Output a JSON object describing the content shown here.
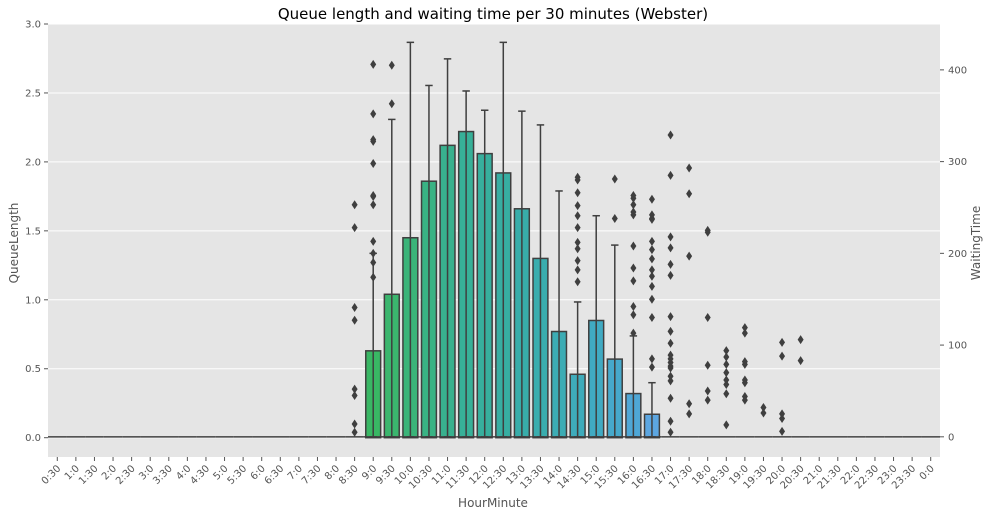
{
  "chart_data": {
    "type": "bar",
    "title": "Queue length and waiting time per 30 minutes (Webster)",
    "xlabel": "HourMinute",
    "ylabel": "QueueLength",
    "y2label": "WaitingTime",
    "ylim": [
      -0.14,
      3.0
    ],
    "y2lim": [
      -22,
      450
    ],
    "yticks": [
      "0.0",
      "0.5",
      "1.0",
      "1.5",
      "2.0",
      "2.5",
      "3.0"
    ],
    "y2ticks": [
      "0",
      "100",
      "200",
      "300",
      "400"
    ],
    "grid": true,
    "background": "#e5e5e5",
    "categories": [
      "0:30",
      "1:0",
      "1:30",
      "2:0",
      "2:30",
      "3:0",
      "3:30",
      "4:0",
      "4:30",
      "5:0",
      "5:30",
      "6:0",
      "6:30",
      "7:0",
      "7:30",
      "8:0",
      "8:30",
      "9:0",
      "9:30",
      "10:0",
      "10:30",
      "11:0",
      "11:30",
      "12:0",
      "12:30",
      "13:0",
      "13:30",
      "14:0",
      "14:30",
      "15:0",
      "15:30",
      "16:0",
      "16:30",
      "17:0",
      "17:30",
      "18:0",
      "18:30",
      "19:0",
      "19:30",
      "20:0",
      "20:30",
      "21:0",
      "21:30",
      "22:0",
      "22:30",
      "23:0",
      "23:30",
      "0:0"
    ],
    "series": [
      {
        "kind": "bar",
        "values": [
          0,
          0,
          0,
          0,
          0,
          0,
          0,
          0,
          0,
          0,
          0,
          0,
          0,
          0,
          0,
          0,
          0,
          0.63,
          1.04,
          1.45,
          1.86,
          2.12,
          2.22,
          2.06,
          1.92,
          1.66,
          1.3,
          0.77,
          0.46,
          0.85,
          0.57,
          0.32,
          0.17,
          0,
          0,
          0,
          0,
          0,
          0,
          0,
          0,
          0,
          0,
          0,
          0,
          0,
          0,
          0
        ],
        "colors": [
          "#e8736b",
          "#e77a5c",
          "#e3814c",
          "#db893f",
          "#d19035",
          "#c6962e",
          "#b99c2c",
          "#ac9f2c",
          "#9fa32f",
          "#91a637",
          "#84a93c",
          "#75ac41",
          "#66ae46",
          "#55b04a",
          "#46b34c",
          "#39b551",
          "#36b65a",
          "#39b764",
          "#3bb66e",
          "#3bb479",
          "#39b384",
          "#38b18e",
          "#37b098",
          "#37af9d",
          "#37aea2",
          "#38adaa",
          "#3aadae",
          "#3cacb4",
          "#3eabbb",
          "#40aac2",
          "#46a9cb",
          "#4fa7d6",
          "#5ca6e1",
          "#71a2e6",
          "#8a9de8",
          "#a098ea",
          "#b292ea",
          "#c18ceb",
          "#ce87ea",
          "#d883e4",
          "#e07fde",
          "#e67bd6",
          "#eb77cd",
          "#ef74c3",
          "#f072b8",
          "#ef72ac",
          "#ed72a0",
          "#ea7394"
        ]
      },
      {
        "kind": "boxplot",
        "axis": "y2",
        "boxes": [
          {
            "q1": 0,
            "med": 0,
            "q3": 0,
            "lo": 0,
            "hi": 0,
            "out": []
          },
          {
            "q1": 0,
            "med": 0,
            "q3": 0,
            "lo": 0,
            "hi": 0,
            "out": []
          },
          {
            "q1": 0,
            "med": 0,
            "q3": 0,
            "lo": 0,
            "hi": 0,
            "out": []
          },
          {
            "q1": 0,
            "med": 0,
            "q3": 0,
            "lo": 0,
            "hi": 0,
            "out": []
          },
          {
            "q1": 0,
            "med": 0,
            "q3": 0,
            "lo": 0,
            "hi": 0,
            "out": []
          },
          {
            "q1": 0,
            "med": 0,
            "q3": 0,
            "lo": 0,
            "hi": 0,
            "out": []
          },
          {
            "q1": 0,
            "med": 0,
            "q3": 0,
            "lo": 0,
            "hi": 0,
            "out": []
          },
          {
            "q1": 0,
            "med": 0,
            "q3": 0,
            "lo": 0,
            "hi": 0,
            "out": []
          },
          {
            "q1": 0,
            "med": 0,
            "q3": 0,
            "lo": 0,
            "hi": 0,
            "out": []
          },
          {
            "q1": 0,
            "med": 0,
            "q3": 0,
            "lo": 0,
            "hi": 0,
            "out": []
          },
          {
            "q1": 0,
            "med": 0,
            "q3": 0,
            "lo": 0,
            "hi": 0,
            "out": []
          },
          {
            "q1": 0,
            "med": 0,
            "q3": 0,
            "lo": 0,
            "hi": 0,
            "out": []
          },
          {
            "q1": 0,
            "med": 0,
            "q3": 0,
            "lo": 0,
            "hi": 0,
            "out": []
          },
          {
            "q1": 0,
            "med": 0,
            "q3": 0,
            "lo": 0,
            "hi": 0,
            "out": []
          },
          {
            "q1": 0,
            "med": 0,
            "q3": 0,
            "lo": 0,
            "hi": 0,
            "out": []
          },
          {
            "q1": 0,
            "med": 0,
            "q3": 0,
            "lo": 0,
            "hi": 0,
            "out": []
          },
          {
            "q1": 0,
            "med": 0,
            "q3": 0,
            "lo": 0,
            "hi": 0,
            "out": [
              5,
              14,
              45,
              52,
              127,
              141,
              228,
              253
            ]
          },
          {
            "q1": 0,
            "med": 0,
            "q3": 0,
            "lo": 0,
            "hi": 200,
            "out": [
              174,
              190,
              200,
              213,
              253,
              262,
              263,
              298,
              322,
              324,
              352,
              406
            ]
          },
          {
            "q1": 0,
            "med": 0,
            "q3": 0,
            "lo": 0,
            "hi": 346,
            "out": [
              363,
              405
            ]
          },
          {
            "q1": 0,
            "med": 0,
            "q3": 0,
            "lo": 0,
            "hi": 430,
            "out": []
          },
          {
            "q1": 0,
            "med": 0,
            "q3": 0,
            "lo": 0,
            "hi": 383,
            "out": []
          },
          {
            "q1": 0,
            "med": 0,
            "q3": 0,
            "lo": 0,
            "hi": 412,
            "out": []
          },
          {
            "q1": 0,
            "med": 0,
            "q3": 0,
            "lo": 0,
            "hi": 377,
            "out": []
          },
          {
            "q1": 0,
            "med": 0,
            "q3": 0,
            "lo": 0,
            "hi": 356,
            "out": []
          },
          {
            "q1": 0,
            "med": 0,
            "q3": 0,
            "lo": 0,
            "hi": 430,
            "out": []
          },
          {
            "q1": 0,
            "med": 0,
            "q3": 0,
            "lo": 0,
            "hi": 355,
            "out": []
          },
          {
            "q1": 0,
            "med": 0,
            "q3": 0,
            "lo": 0,
            "hi": 340,
            "out": []
          },
          {
            "q1": 0,
            "med": 0,
            "q3": 0,
            "lo": 0,
            "hi": 268,
            "out": []
          },
          {
            "q1": 0,
            "med": 0,
            "q3": 0,
            "lo": 0,
            "hi": 147,
            "out": [
              169,
              182,
              192,
              205,
              212,
              228,
              241,
              252,
              266,
              280,
              283
            ]
          },
          {
            "q1": 0,
            "med": 0,
            "q3": 0,
            "lo": 0,
            "hi": 241,
            "out": []
          },
          {
            "q1": 0,
            "med": 0,
            "q3": 0,
            "lo": 0,
            "hi": 209,
            "out": [
              238,
              281
            ]
          },
          {
            "q1": 0,
            "med": 0,
            "q3": 0,
            "lo": 0,
            "hi": 110,
            "out": [
              113,
              133,
              142,
              170,
              184,
              208,
              242,
              245,
              253,
              260,
              263
            ]
          },
          {
            "q1": 0,
            "med": 0,
            "q3": 0,
            "lo": 0,
            "hi": 59,
            "out": [
              76,
              85,
              130,
              150,
              164,
              175,
              182,
              194,
              204,
              213,
              238,
              242,
              259,
              237
            ]
          },
          {
            "q1": 0,
            "med": 0,
            "q3": 0,
            "lo": 0,
            "hi": 0,
            "out": [
              5,
              17,
              42,
              61,
              66,
              75,
              77,
              81,
              85,
              89,
              102,
              115,
              131,
              176,
              188,
              206,
              218,
              285,
              329
            ]
          },
          {
            "q1": 0,
            "med": 0,
            "q3": 0,
            "lo": 0,
            "hi": 0,
            "out": [
              25,
              36,
              197,
              265,
              293
            ]
          },
          {
            "q1": 0,
            "med": 0,
            "q3": 0,
            "lo": 0,
            "hi": 0,
            "out": [
              40,
              50,
              78,
              130,
              223,
              225
            ]
          },
          {
            "q1": 0,
            "med": 0,
            "q3": 0,
            "lo": 0,
            "hi": 0,
            "out": [
              13,
              47,
              57,
              62,
              70,
              79,
              87,
              94
            ]
          },
          {
            "q1": 0,
            "med": 0,
            "q3": 0,
            "lo": 0,
            "hi": 0,
            "out": [
              40,
              44,
              59,
              62,
              79,
              82,
              113,
              119
            ]
          },
          {
            "q1": 0,
            "med": 0,
            "q3": 0,
            "lo": 0,
            "hi": 0,
            "out": [
              26,
              32
            ]
          },
          {
            "q1": 0,
            "med": 0,
            "q3": 0,
            "lo": 0,
            "hi": 0,
            "out": [
              6,
              20,
              25,
              88,
              103
            ]
          },
          {
            "q1": 0,
            "med": 0,
            "q3": 0,
            "lo": 0,
            "hi": 0,
            "out": [
              83,
              106
            ]
          },
          {
            "q1": 0,
            "med": 0,
            "q3": 0,
            "lo": 0,
            "hi": 0,
            "out": []
          },
          {
            "q1": 0,
            "med": 0,
            "q3": 0,
            "lo": 0,
            "hi": 0,
            "out": []
          },
          {
            "q1": 0,
            "med": 0,
            "q3": 0,
            "lo": 0,
            "hi": 0,
            "out": []
          },
          {
            "q1": 0,
            "med": 0,
            "q3": 0,
            "lo": 0,
            "hi": 0,
            "out": []
          },
          {
            "q1": 0,
            "med": 0,
            "q3": 0,
            "lo": 0,
            "hi": 0,
            "out": []
          },
          {
            "q1": 0,
            "med": 0,
            "q3": 0,
            "lo": 0,
            "hi": 0,
            "out": []
          },
          {
            "q1": 0,
            "med": 0,
            "q3": 0,
            "lo": 0,
            "hi": 0,
            "out": []
          }
        ]
      }
    ]
  }
}
